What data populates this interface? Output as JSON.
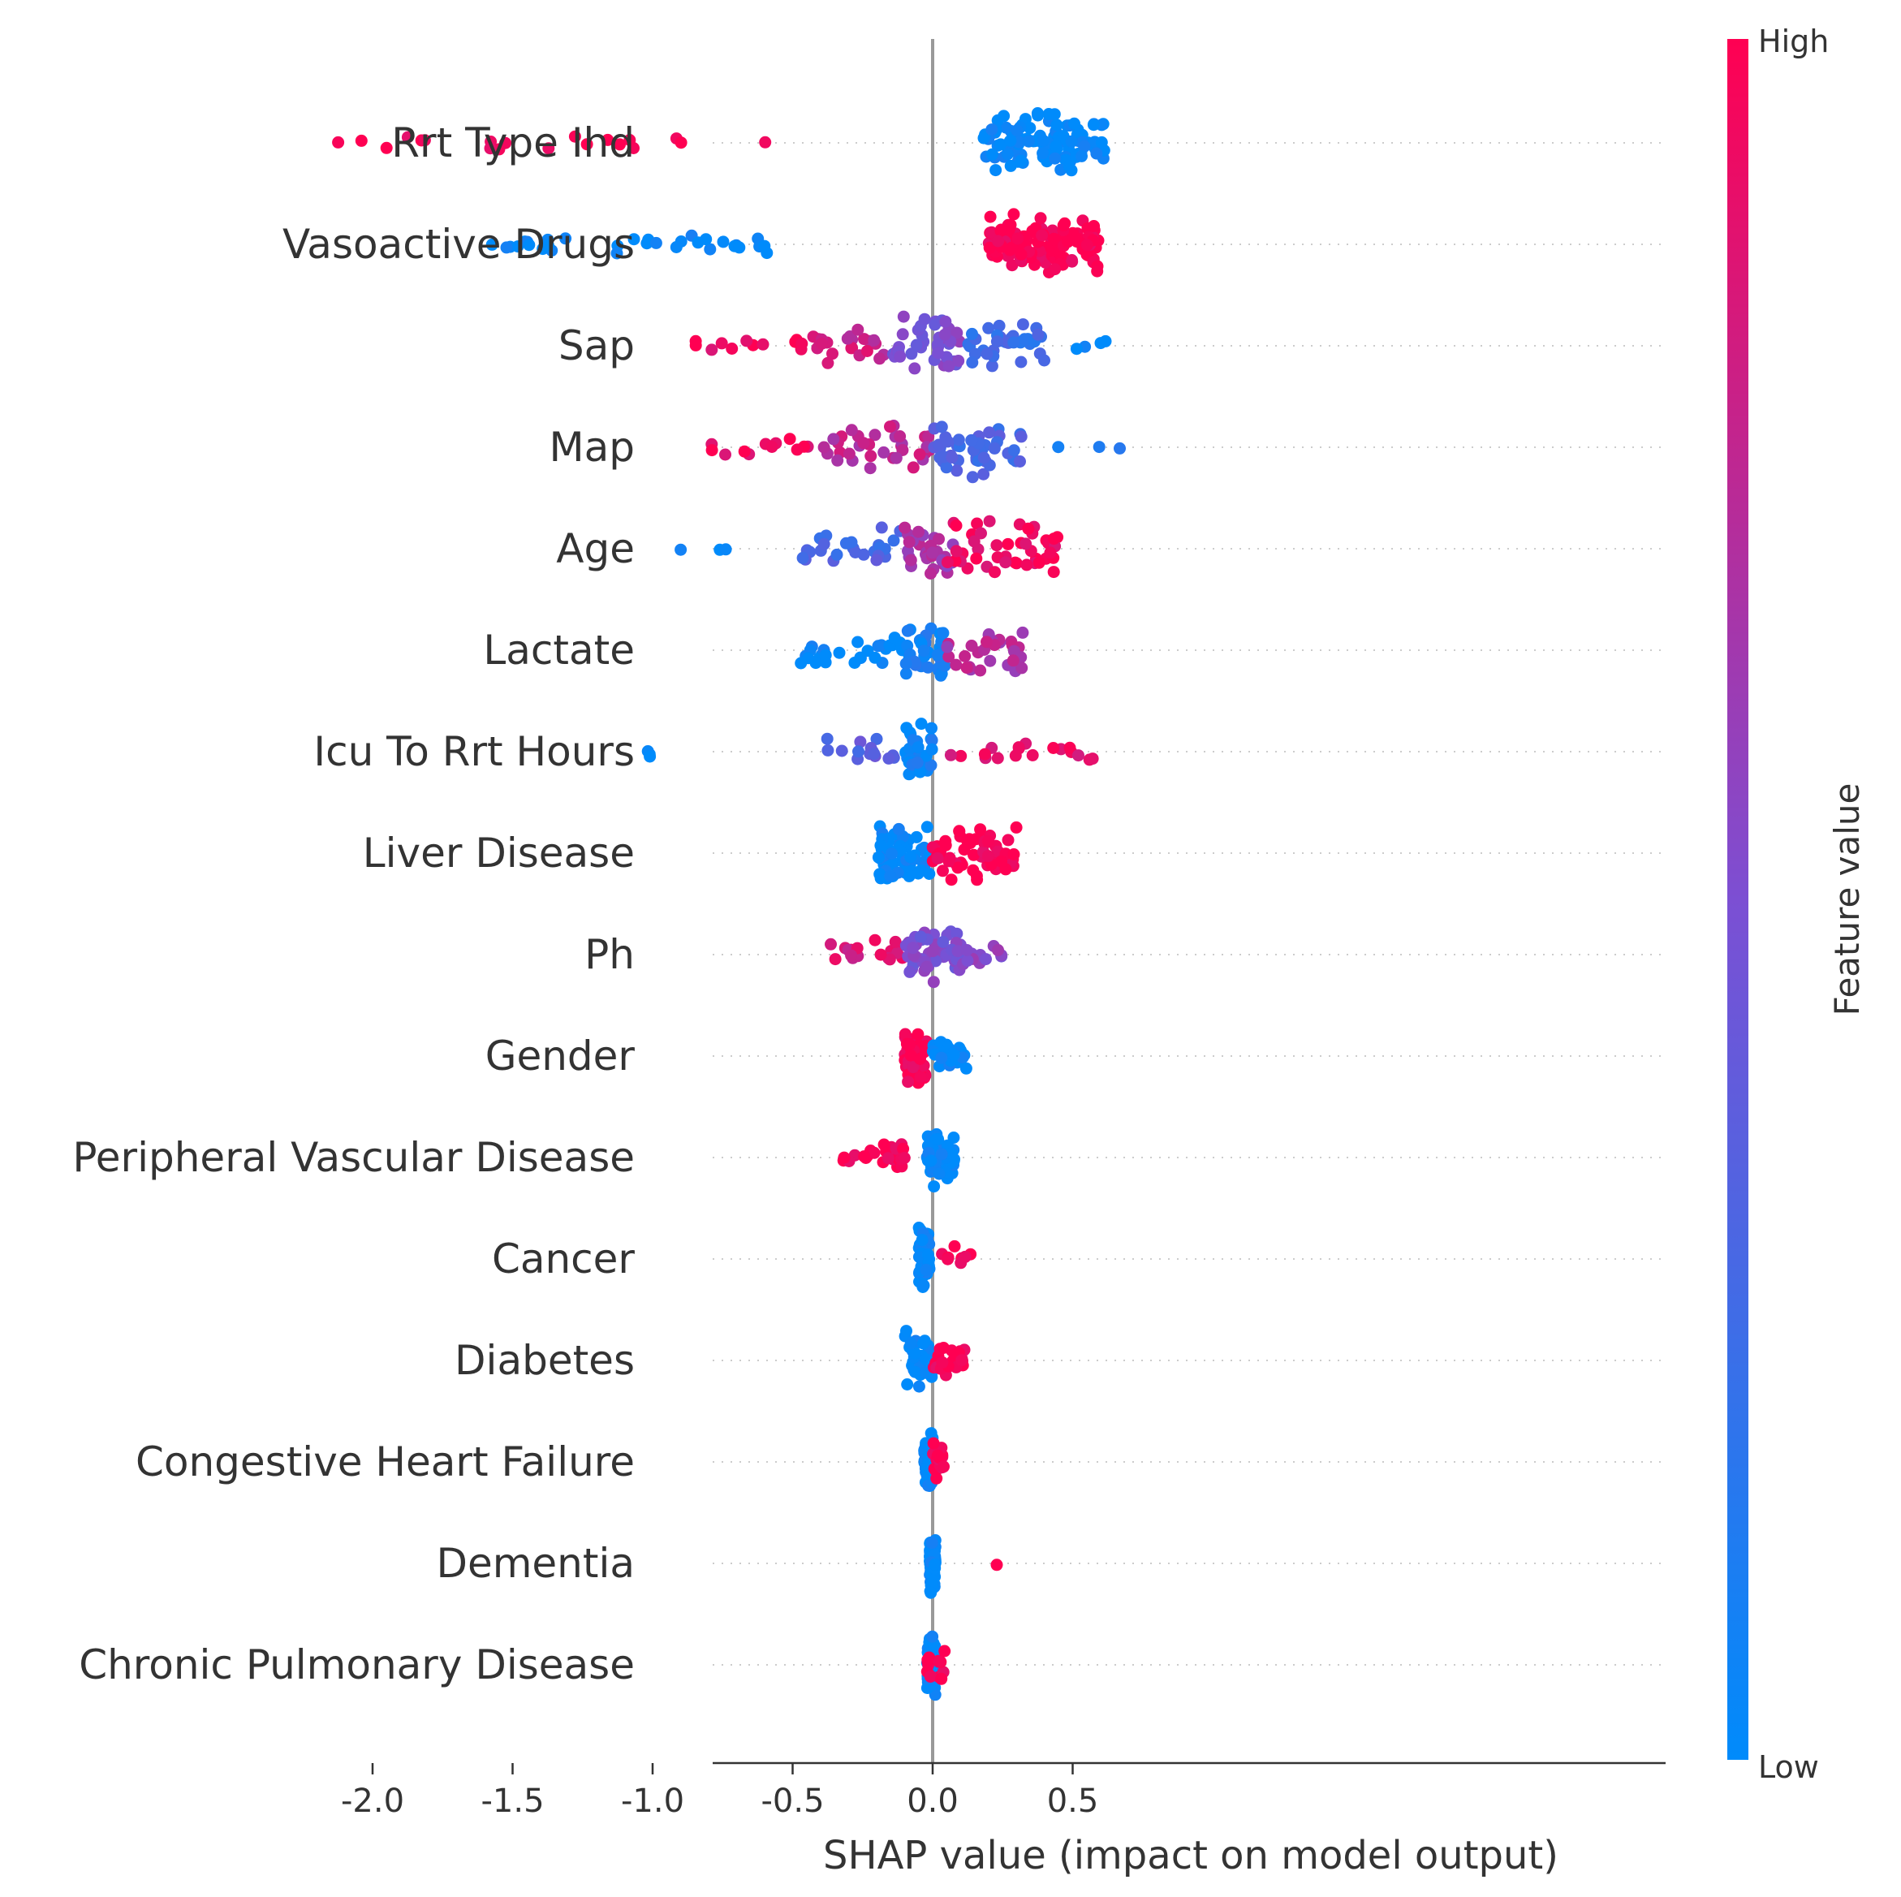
{
  "chart_data": {
    "type": "scatter",
    "subtype": "shap-beeswarm",
    "title": "",
    "xlabel": "SHAP value (impact on model output)",
    "ylabel": "",
    "xlim": [
      -2.45,
      0.95
    ],
    "xticks": [
      -2.0,
      -1.5,
      -1.0,
      -0.5,
      0.0,
      0.5
    ],
    "xtick_labels": [
      "-2.0",
      "-1.5",
      "-1.0",
      "-0.5",
      "0.0",
      "0.5"
    ],
    "zero_line": 0.0,
    "colorbar": {
      "label": "Feature value",
      "high_label": "High",
      "low_label": "Low"
    },
    "colors": {
      "low": "#008bfb",
      "mid": "#7c4fd3",
      "high": "#ff0052",
      "zero_line": "#999999",
      "grid": "#cccccc",
      "text": "#333333"
    },
    "features": [
      {
        "name": "Rrt Type Ihd",
        "clusters": [
          {
            "lo": -2.32,
            "hi": -0.55,
            "n": 20,
            "c": 1.0,
            "sp": 0.3
          },
          {
            "lo": 0.18,
            "hi": 0.62,
            "n": 110,
            "c": 0.0,
            "sp": 1.0
          }
        ]
      },
      {
        "name": "Vasoactive Drugs",
        "clusters": [
          {
            "lo": -1.67,
            "hi": -0.58,
            "n": 32,
            "c": 0.0,
            "sp": 0.3
          },
          {
            "lo": 0.2,
            "hi": 0.6,
            "n": 110,
            "c": 1.0,
            "sp": 1.0
          }
        ]
      },
      {
        "name": "Sap",
        "clusters": [
          {
            "lo": -0.93,
            "hi": -0.45,
            "n": 12,
            "c": 0.95,
            "sp": 0.3
          },
          {
            "lo": -0.45,
            "hi": -0.15,
            "n": 22,
            "c": 0.8,
            "sp": 0.6
          },
          {
            "lo": -0.15,
            "hi": 0.1,
            "n": 45,
            "c": 0.5,
            "sp": 1.0
          },
          {
            "lo": 0.1,
            "hi": 0.4,
            "n": 35,
            "c": 0.25,
            "sp": 0.9
          },
          {
            "lo": 0.5,
            "hi": 0.82,
            "n": 4,
            "c": 0.0,
            "sp": 0.2
          }
        ]
      },
      {
        "name": "Map",
        "clusters": [
          {
            "lo": -0.87,
            "hi": -0.4,
            "n": 12,
            "c": 0.95,
            "sp": 0.3
          },
          {
            "lo": -0.4,
            "hi": 0.0,
            "n": 35,
            "c": 0.75,
            "sp": 0.8
          },
          {
            "lo": 0.0,
            "hi": 0.32,
            "n": 50,
            "c": 0.3,
            "sp": 1.0
          },
          {
            "lo": 0.4,
            "hi": 0.7,
            "n": 3,
            "c": 0.1,
            "sp": 0.2
          }
        ]
      },
      {
        "name": "Age",
        "clusters": [
          {
            "lo": -1.05,
            "hi": -0.7,
            "n": 3,
            "c": 0.0,
            "sp": 0.1
          },
          {
            "lo": -0.5,
            "hi": -0.1,
            "n": 25,
            "c": 0.3,
            "sp": 0.7
          },
          {
            "lo": -0.1,
            "hi": 0.1,
            "n": 30,
            "c": 0.65,
            "sp": 0.9
          },
          {
            "lo": 0.05,
            "hi": 0.45,
            "n": 45,
            "c": 0.95,
            "sp": 1.0
          }
        ]
      },
      {
        "name": "Lactate",
        "clusters": [
          {
            "lo": -0.48,
            "hi": -0.1,
            "n": 28,
            "c": 0.0,
            "sp": 0.6
          },
          {
            "lo": -0.1,
            "hi": 0.05,
            "n": 40,
            "c": 0.08,
            "sp": 1.0
          },
          {
            "lo": 0.05,
            "hi": 0.33,
            "n": 30,
            "c": 0.7,
            "sp": 0.8
          }
        ]
      },
      {
        "name": "Icu To Rrt Hours",
        "clusters": [
          {
            "lo": -1.02,
            "hi": -0.98,
            "n": 3,
            "c": 0.0,
            "sp": 0.2
          },
          {
            "lo": -0.38,
            "hi": -0.1,
            "n": 15,
            "c": 0.35,
            "sp": 0.5
          },
          {
            "lo": -0.1,
            "hi": 0.0,
            "n": 35,
            "c": 0.05,
            "sp": 1.0
          },
          {
            "lo": 0.05,
            "hi": 0.6,
            "n": 18,
            "c": 0.9,
            "sp": 0.4
          }
        ]
      },
      {
        "name": "Liver Disease",
        "clusters": [
          {
            "lo": -0.2,
            "hi": 0.0,
            "n": 55,
            "c": 0.0,
            "sp": 1.0
          },
          {
            "lo": 0.0,
            "hi": 0.3,
            "n": 60,
            "c": 1.0,
            "sp": 0.9
          }
        ]
      },
      {
        "name": "Ph",
        "clusters": [
          {
            "lo": -0.38,
            "hi": -0.1,
            "n": 18,
            "c": 0.85,
            "sp": 0.5
          },
          {
            "lo": -0.1,
            "hi": 0.1,
            "n": 50,
            "c": 0.5,
            "sp": 1.0
          },
          {
            "lo": 0.1,
            "hi": 0.28,
            "n": 12,
            "c": 0.55,
            "sp": 0.5
          }
        ]
      },
      {
        "name": "Gender",
        "clusters": [
          {
            "lo": -0.1,
            "hi": -0.02,
            "n": 60,
            "c": 1.0,
            "sp": 1.0
          },
          {
            "lo": 0.0,
            "hi": 0.12,
            "n": 30,
            "c": 0.0,
            "sp": 0.5
          }
        ]
      },
      {
        "name": "Peripheral Vascular Disease",
        "clusters": [
          {
            "lo": -0.32,
            "hi": -0.1,
            "n": 25,
            "c": 1.0,
            "sp": 0.5
          },
          {
            "lo": -0.02,
            "hi": 0.08,
            "n": 60,
            "c": 0.0,
            "sp": 1.0
          }
        ]
      },
      {
        "name": "Cancer",
        "clusters": [
          {
            "lo": -0.05,
            "hi": -0.01,
            "n": 60,
            "c": 0.0,
            "sp": 1.0
          },
          {
            "lo": 0.03,
            "hi": 0.15,
            "n": 8,
            "c": 1.0,
            "sp": 0.4
          }
        ]
      },
      {
        "name": "Diabetes",
        "clusters": [
          {
            "lo": -0.1,
            "hi": 0.0,
            "n": 40,
            "c": 0.0,
            "sp": 1.0
          },
          {
            "lo": 0.0,
            "hi": 0.12,
            "n": 30,
            "c": 1.0,
            "sp": 0.6
          }
        ]
      },
      {
        "name": "Congestive Heart Failure",
        "clusters": [
          {
            "lo": -0.03,
            "hi": 0.0,
            "n": 60,
            "c": 0.0,
            "sp": 1.0
          },
          {
            "lo": 0.0,
            "hi": 0.04,
            "n": 20,
            "c": 1.0,
            "sp": 0.6
          }
        ]
      },
      {
        "name": "Dementia",
        "clusters": [
          {
            "lo": -0.01,
            "hi": 0.01,
            "n": 80,
            "c": 0.0,
            "sp": 1.0
          },
          {
            "lo": 0.22,
            "hi": 0.23,
            "n": 1,
            "c": 1.0,
            "sp": 0.1
          }
        ]
      },
      {
        "name": "Chronic Pulmonary Disease",
        "clusters": [
          {
            "lo": -0.02,
            "hi": 0.01,
            "n": 60,
            "c": 0.0,
            "sp": 1.0
          },
          {
            "lo": -0.02,
            "hi": 0.05,
            "n": 15,
            "c": 1.0,
            "sp": 0.5
          }
        ]
      }
    ]
  }
}
